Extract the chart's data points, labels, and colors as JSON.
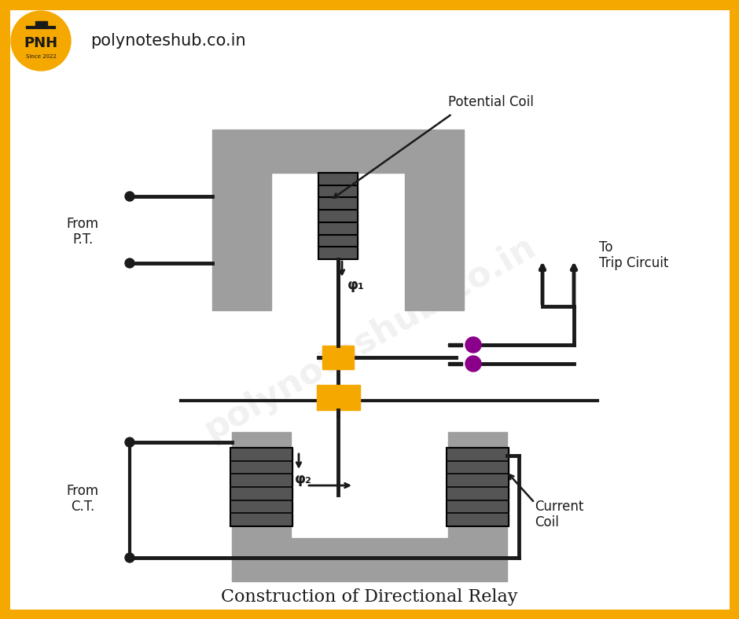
{
  "title": "Construction of Directional Relay",
  "background_color": "#ffffff",
  "border_color": "#F5A800",
  "border_width": 18,
  "gray_color": "#9E9E9E",
  "gold_color": "#F5A800",
  "purple_color": "#8B008B",
  "black_color": "#1a1a1a",
  "watermark_color": "#cccccc",
  "watermark_text": "polynoteshub.co.in",
  "header_text": "polynoteshub.co.in",
  "label_potential_coil": "Potential Coil",
  "label_from_pt": "From\nP.T.",
  "label_to_trip": "To\nTrip Circuit",
  "label_phi1": "φ₁",
  "label_phi2": "φ₂",
  "label_from_ct": "From\nC.T.",
  "label_current_coil": "Current\nCoil"
}
